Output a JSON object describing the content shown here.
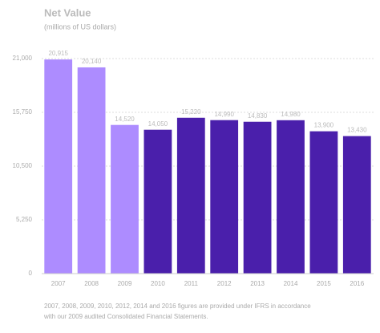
{
  "chart_data": {
    "type": "bar",
    "title": "Net Value",
    "subtitle": "(millions of US dollars)",
    "categories": [
      "2007",
      "2008",
      "2009",
      "2010",
      "2011",
      "2012",
      "2013",
      "2014",
      "2015",
      "2016"
    ],
    "values": [
      20915,
      20140,
      14520,
      14050,
      15220,
      14990,
      14830,
      14980,
      13900,
      13430
    ],
    "value_labels": [
      "20,915",
      "20,140",
      "14,520",
      "14,050",
      "15,220",
      "14,990",
      "14,830",
      "14,980",
      "13,900",
      "13,430"
    ],
    "colors": [
      "#ad8cff",
      "#ad8cff",
      "#ad8cff",
      "#4a1fab",
      "#4a1fab",
      "#4a1fab",
      "#4a1fab",
      "#4a1fab",
      "#4a1fab",
      "#4a1fab"
    ],
    "ylim": [
      0,
      21000
    ],
    "yticks": [
      0,
      {
        "value": 5250,
        "label": "5,250"
      },
      {
        "value": 10500,
        "label": "10,500"
      },
      {
        "value": 15750,
        "label": "15,750"
      },
      {
        "value": 21000,
        "label": "21,000"
      }
    ],
    "grid": true,
    "notes": [
      "2007, 2008, 2009, 2010, 2012, 2014 and 2016 figures are provided under IFRS in accordance",
      "with our 2009 audited Consolidated Financial Statements."
    ]
  }
}
